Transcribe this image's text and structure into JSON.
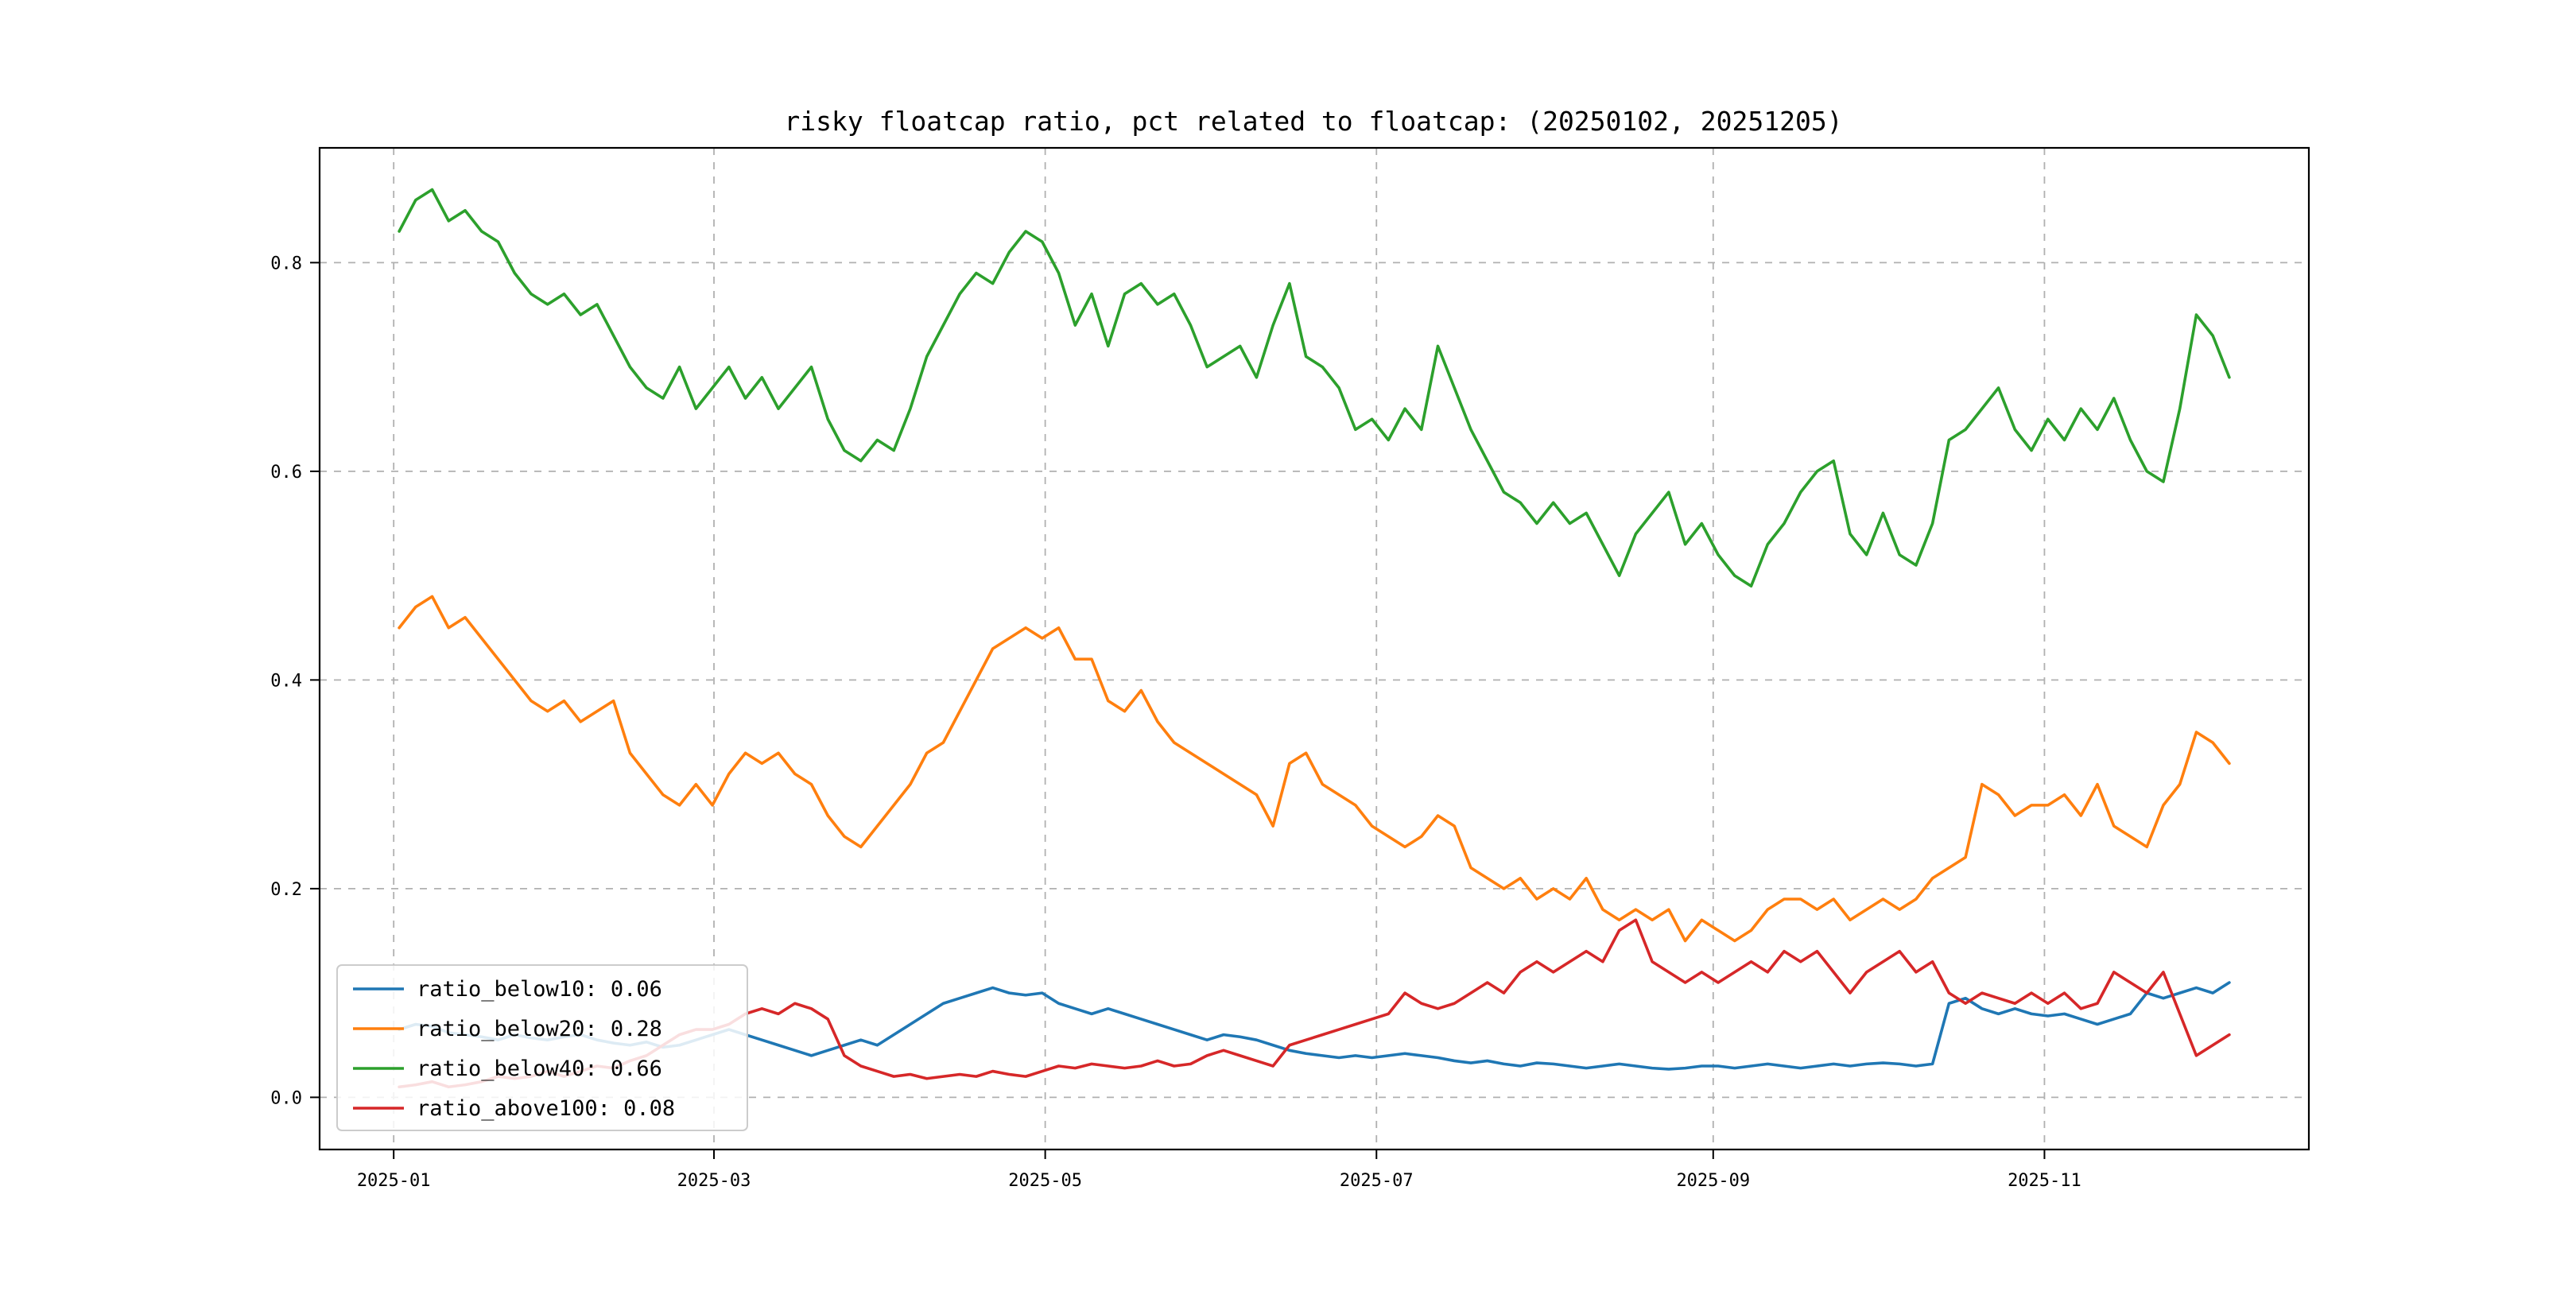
{
  "figure": {
    "background": "#ffffff"
  },
  "chart_data": {
    "type": "line",
    "title": "risky floatcap ratio, pct related to floatcap: (20250102, 20251205)",
    "xlabel": "",
    "ylabel": "",
    "x_range": [
      "2025-01-02",
      "2025-12-05"
    ],
    "ylim": [
      -0.05,
      0.91
    ],
    "yticks": [
      0.0,
      0.2,
      0.4,
      0.6,
      0.8
    ],
    "ytick_labels": [
      "0.0",
      "0.2",
      "0.4",
      "0.6",
      "0.8"
    ],
    "xticks": [
      {
        "f": -0.003,
        "label": "2025-01"
      },
      {
        "f": 0.172,
        "label": "2025-03"
      },
      {
        "f": 0.353,
        "label": "2025-05"
      },
      {
        "f": 0.534,
        "label": "2025-07"
      },
      {
        "f": 0.718,
        "label": "2025-09"
      },
      {
        "f": 0.899,
        "label": "2025-11"
      }
    ],
    "grid": true,
    "grid_style": "dashed",
    "grid_color": "#b0b0b0",
    "legend_position": "lower left",
    "series": [
      {
        "name": "ratio_below10",
        "legend_label": "ratio_below10: 0.06",
        "color": "#1f77b4",
        "values": [
          0.065,
          0.07,
          0.068,
          0.062,
          0.06,
          0.058,
          0.055,
          0.06,
          0.057,
          0.055,
          0.058,
          0.06,
          0.055,
          0.052,
          0.05,
          0.053,
          0.048,
          0.05,
          0.055,
          0.06,
          0.065,
          0.06,
          0.055,
          0.05,
          0.045,
          0.04,
          0.045,
          0.05,
          0.055,
          0.05,
          0.06,
          0.07,
          0.08,
          0.09,
          0.095,
          0.1,
          0.105,
          0.1,
          0.098,
          0.1,
          0.09,
          0.085,
          0.08,
          0.085,
          0.08,
          0.075,
          0.07,
          0.065,
          0.06,
          0.055,
          0.06,
          0.058,
          0.055,
          0.05,
          0.045,
          0.042,
          0.04,
          0.038,
          0.04,
          0.038,
          0.04,
          0.042,
          0.04,
          0.038,
          0.035,
          0.033,
          0.035,
          0.032,
          0.03,
          0.033,
          0.032,
          0.03,
          0.028,
          0.03,
          0.032,
          0.03,
          0.028,
          0.027,
          0.028,
          0.03,
          0.03,
          0.028,
          0.03,
          0.032,
          0.03,
          0.028,
          0.03,
          0.032,
          0.03,
          0.032,
          0.033,
          0.032,
          0.03,
          0.032,
          0.09,
          0.095,
          0.085,
          0.08,
          0.085,
          0.08,
          0.078,
          0.08,
          0.075,
          0.07,
          0.075,
          0.08,
          0.1,
          0.095,
          0.1,
          0.105,
          0.1,
          0.11
        ]
      },
      {
        "name": "ratio_below20",
        "legend_label": "ratio_below20: 0.28",
        "color": "#ff7f0e",
        "values": [
          0.45,
          0.47,
          0.48,
          0.45,
          0.46,
          0.44,
          0.42,
          0.4,
          0.38,
          0.37,
          0.38,
          0.36,
          0.37,
          0.38,
          0.33,
          0.31,
          0.29,
          0.28,
          0.3,
          0.28,
          0.31,
          0.33,
          0.32,
          0.33,
          0.31,
          0.3,
          0.27,
          0.25,
          0.24,
          0.26,
          0.28,
          0.3,
          0.33,
          0.34,
          0.37,
          0.4,
          0.43,
          0.44,
          0.45,
          0.44,
          0.45,
          0.42,
          0.42,
          0.38,
          0.37,
          0.39,
          0.36,
          0.34,
          0.33,
          0.32,
          0.31,
          0.3,
          0.29,
          0.26,
          0.32,
          0.33,
          0.3,
          0.29,
          0.28,
          0.26,
          0.25,
          0.24,
          0.25,
          0.27,
          0.26,
          0.22,
          0.21,
          0.2,
          0.21,
          0.19,
          0.2,
          0.19,
          0.21,
          0.18,
          0.17,
          0.18,
          0.17,
          0.18,
          0.15,
          0.17,
          0.16,
          0.15,
          0.16,
          0.18,
          0.19,
          0.19,
          0.18,
          0.19,
          0.17,
          0.18,
          0.19,
          0.18,
          0.19,
          0.21,
          0.22,
          0.23,
          0.3,
          0.29,
          0.27,
          0.28,
          0.28,
          0.29,
          0.27,
          0.3,
          0.26,
          0.25,
          0.24,
          0.28,
          0.3,
          0.35,
          0.34,
          0.32
        ]
      },
      {
        "name": "ratio_below40",
        "legend_label": "ratio_below40: 0.66",
        "color": "#2ca02c",
        "values": [
          0.83,
          0.86,
          0.87,
          0.84,
          0.85,
          0.83,
          0.82,
          0.79,
          0.77,
          0.76,
          0.77,
          0.75,
          0.76,
          0.73,
          0.7,
          0.68,
          0.67,
          0.7,
          0.66,
          0.68,
          0.7,
          0.67,
          0.69,
          0.66,
          0.68,
          0.7,
          0.65,
          0.62,
          0.61,
          0.63,
          0.62,
          0.66,
          0.71,
          0.74,
          0.77,
          0.79,
          0.78,
          0.81,
          0.83,
          0.82,
          0.79,
          0.74,
          0.77,
          0.72,
          0.77,
          0.78,
          0.76,
          0.77,
          0.74,
          0.7,
          0.71,
          0.72,
          0.69,
          0.74,
          0.78,
          0.71,
          0.7,
          0.68,
          0.64,
          0.65,
          0.63,
          0.66,
          0.64,
          0.72,
          0.68,
          0.64,
          0.61,
          0.58,
          0.57,
          0.55,
          0.57,
          0.55,
          0.56,
          0.53,
          0.5,
          0.54,
          0.56,
          0.58,
          0.53,
          0.55,
          0.52,
          0.5,
          0.49,
          0.53,
          0.55,
          0.58,
          0.6,
          0.61,
          0.54,
          0.52,
          0.56,
          0.52,
          0.51,
          0.55,
          0.63,
          0.64,
          0.66,
          0.68,
          0.64,
          0.62,
          0.65,
          0.63,
          0.66,
          0.64,
          0.67,
          0.63,
          0.6,
          0.59,
          0.66,
          0.75,
          0.73,
          0.69
        ]
      },
      {
        "name": "ratio_above100",
        "legend_label": "ratio_above100: 0.08",
        "color": "#d62728",
        "values": [
          0.01,
          0.012,
          0.015,
          0.01,
          0.012,
          0.015,
          0.02,
          0.018,
          0.02,
          0.025,
          0.02,
          0.025,
          0.03,
          0.028,
          0.035,
          0.04,
          0.05,
          0.06,
          0.065,
          0.065,
          0.07,
          0.08,
          0.085,
          0.08,
          0.09,
          0.085,
          0.075,
          0.04,
          0.03,
          0.025,
          0.02,
          0.022,
          0.018,
          0.02,
          0.022,
          0.02,
          0.025,
          0.022,
          0.02,
          0.025,
          0.03,
          0.028,
          0.032,
          0.03,
          0.028,
          0.03,
          0.035,
          0.03,
          0.032,
          0.04,
          0.045,
          0.04,
          0.035,
          0.03,
          0.05,
          0.055,
          0.06,
          0.065,
          0.07,
          0.075,
          0.08,
          0.1,
          0.09,
          0.085,
          0.09,
          0.1,
          0.11,
          0.1,
          0.12,
          0.13,
          0.12,
          0.13,
          0.14,
          0.13,
          0.16,
          0.17,
          0.13,
          0.12,
          0.11,
          0.12,
          0.11,
          0.12,
          0.13,
          0.12,
          0.14,
          0.13,
          0.14,
          0.12,
          0.1,
          0.12,
          0.13,
          0.14,
          0.12,
          0.13,
          0.1,
          0.09,
          0.1,
          0.095,
          0.09,
          0.1,
          0.09,
          0.1,
          0.085,
          0.09,
          0.12,
          0.11,
          0.1,
          0.12,
          0.08,
          0.04,
          0.05,
          0.06
        ]
      }
    ]
  }
}
